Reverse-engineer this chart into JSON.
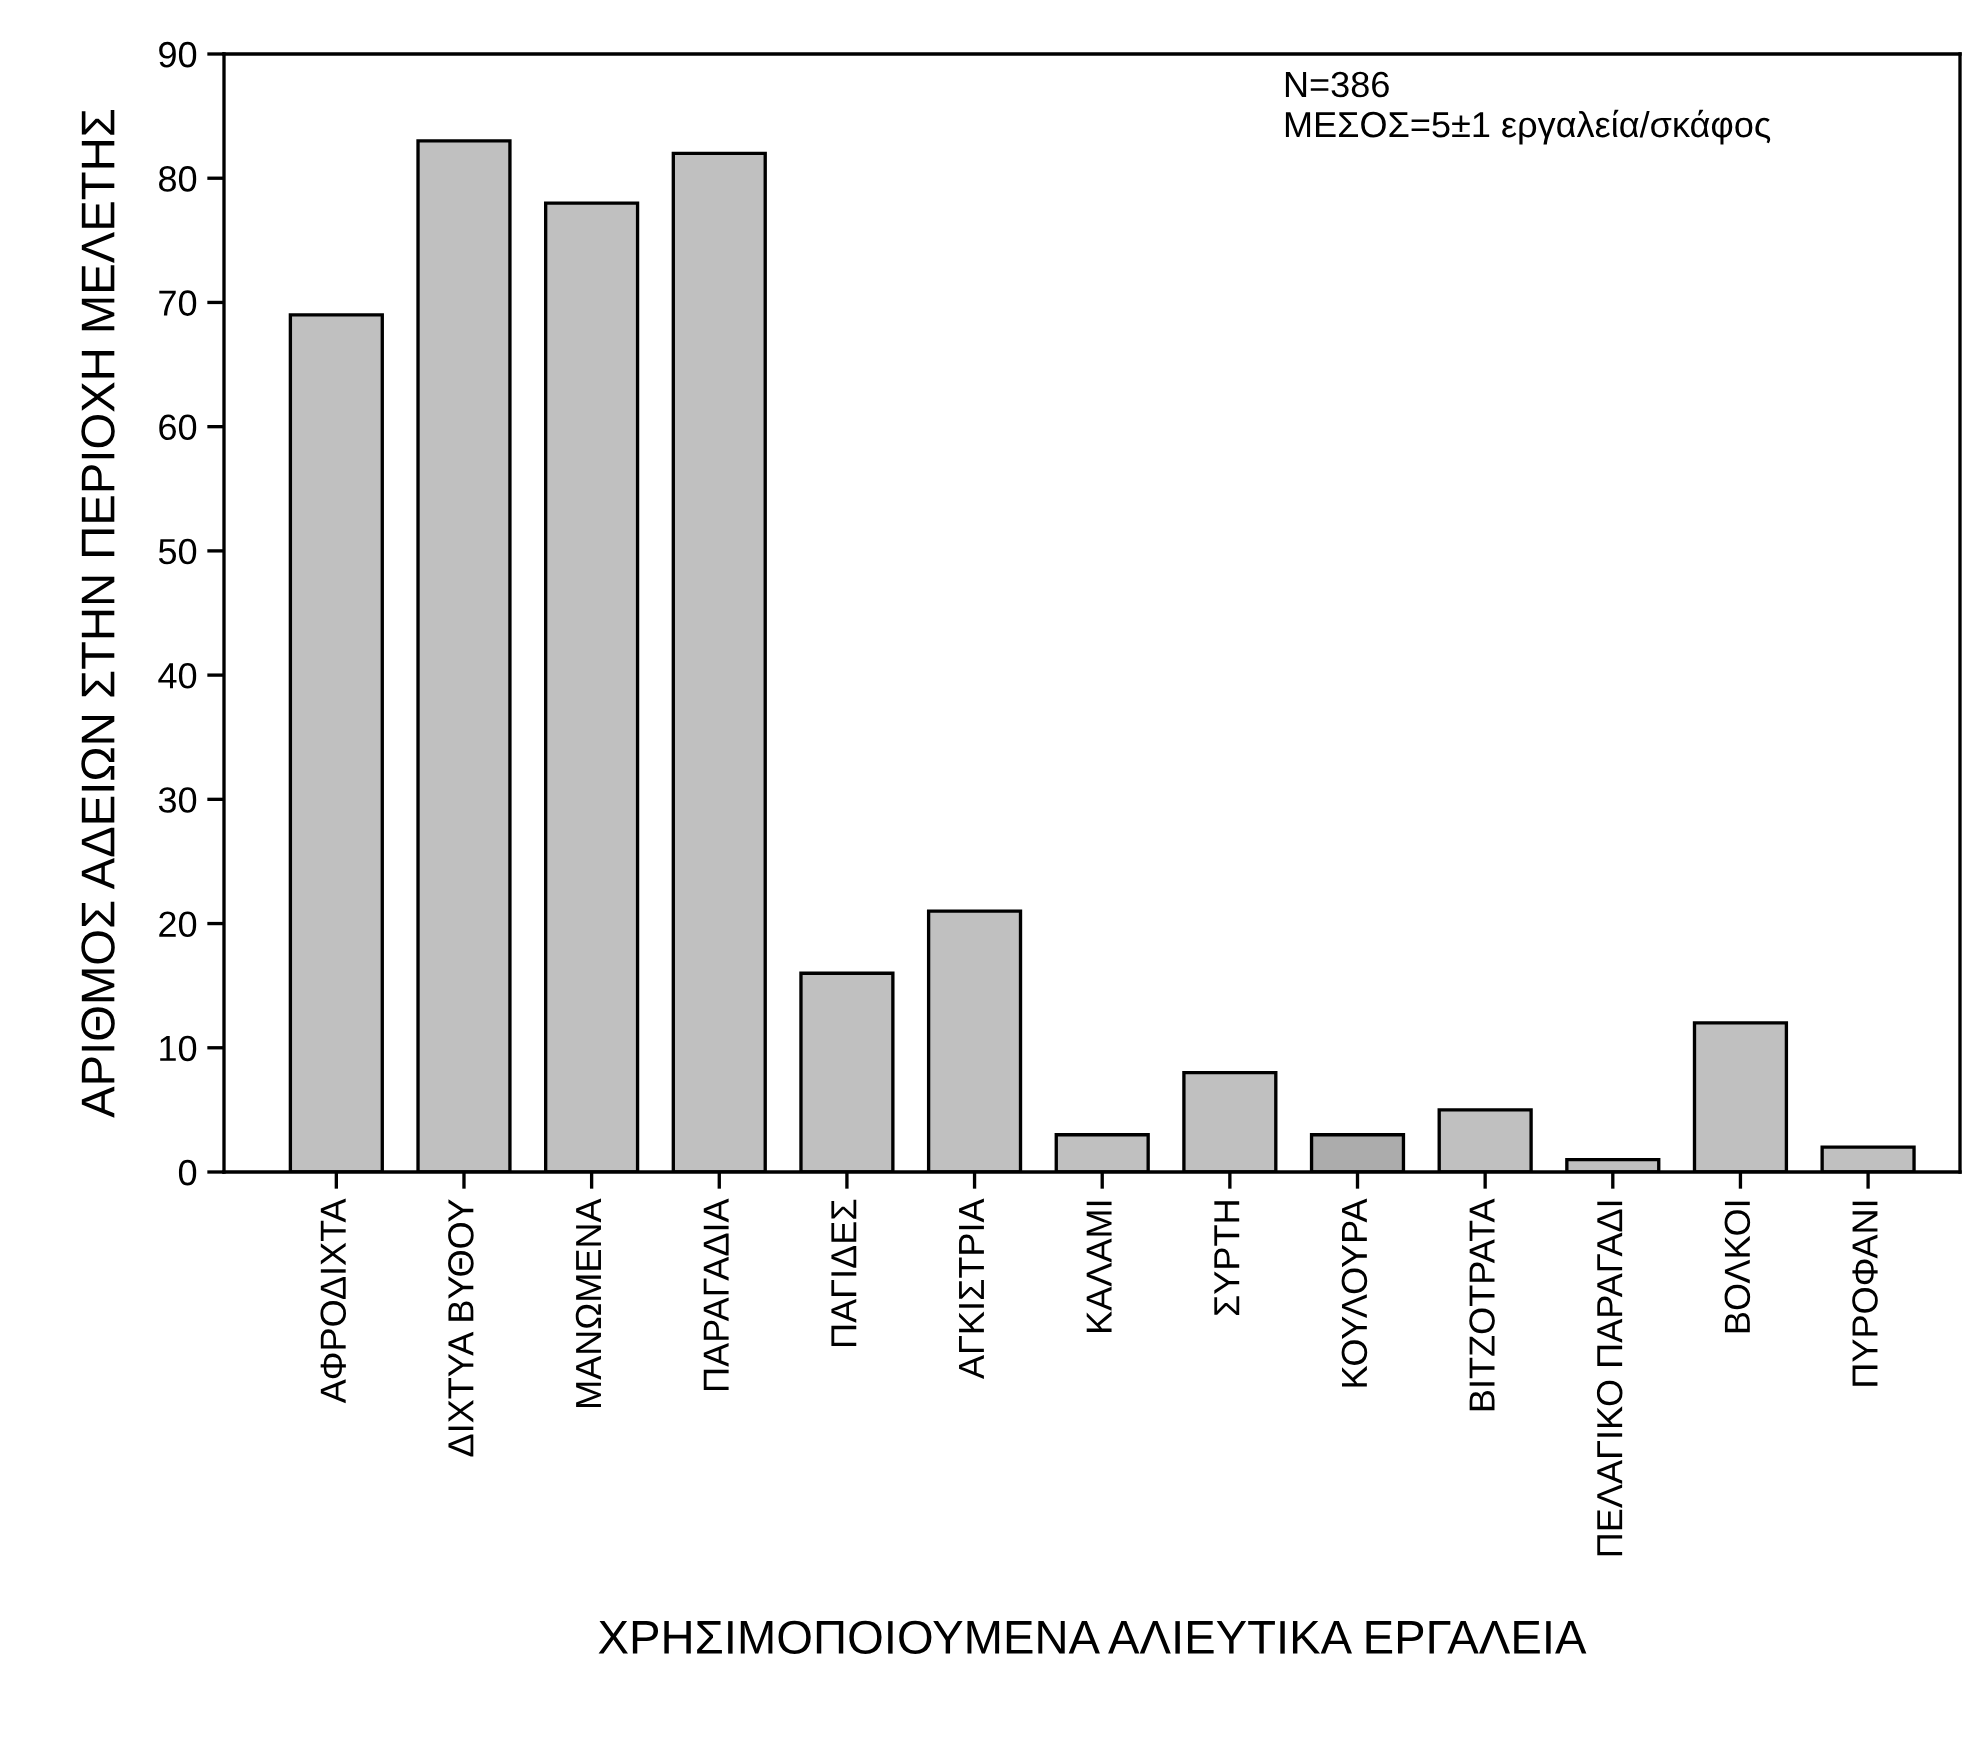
{
  "chart_data": {
    "type": "bar",
    "xlabel": "ΧΡΗΣΙΜΟΠΟΙΟΥΜΕΝΑ ΑΛΙΕΥΤΙΚΑ ΕΡΓΑΛΕΙΑ",
    "ylabel": "ΑΡΙΘΜΟΣ ΑΔΕΙΩΝ ΣΤΗΝ ΠΕΡΙΟΧΗ ΜΕΛΕΤΗΣ",
    "categories": [
      "ΑΦΡΟΔΙΧΤΑ",
      "ΔΙΧΤΥΑ ΒΥΘΟΥ",
      "ΜΑΝΩΜΕΝΑ",
      "ΠΑΡΑΓΑΔΙΑ",
      "ΠΑΓΙΔΕΣ",
      "ΑΓΚΙΣΤΡΙΑ",
      "ΚΑΛΑΜΙ",
      "ΣΥΡΤΗ",
      "ΚΟΥΛΟΥΡΑ",
      "ΒΙΤΖΟΤΡΑΤΑ",
      "ΠΕΛΑΓΙΚΟ ΠΑΡΑΓΑΔΙ",
      "ΒΟΛΚΟΙ",
      "ΠΥΡΟΦΑΝΙ"
    ],
    "values": [
      69,
      83,
      78,
      82,
      16,
      21,
      3,
      8,
      3,
      5,
      1,
      12,
      2
    ],
    "colors": [
      "#c0c0c0",
      "#c0c0c0",
      "#c0c0c0",
      "#c0c0c0",
      "#c0c0c0",
      "#c0c0c0",
      "#c0c0c0",
      "#c0c0c0",
      "#acacac",
      "#c0c0c0",
      "#c0c0c0",
      "#c0c0c0",
      "#c0c0c0"
    ],
    "ylim": [
      0,
      90
    ],
    "yticks": [
      0,
      10,
      20,
      30,
      40,
      50,
      60,
      70,
      80,
      90
    ],
    "grid": false,
    "annotations": [
      "N=386\nΜΕΣΟΣ=5±1 εργαλεία/σκάφος"
    ]
  }
}
